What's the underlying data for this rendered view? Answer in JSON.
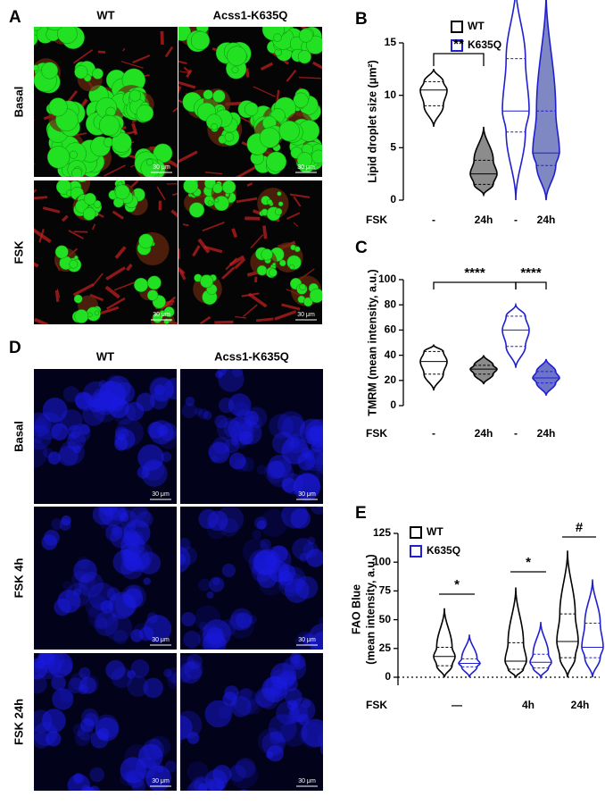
{
  "figure": {
    "images": [
      {
        "label": "A",
        "columns": [
          "WT",
          "Acss1-K635Q"
        ],
        "rows": [
          "Basal",
          "FSK"
        ],
        "scale_bar": "30 μm",
        "palette": "green-red"
      },
      {
        "label": "D",
        "columns": [
          "WT",
          "Acss1-K635Q"
        ],
        "rows": [
          "Basal",
          "FSK 4h",
          "FSK 24h"
        ],
        "scale_bar": "30 μm",
        "palette": "blue"
      }
    ]
  },
  "chart_data": [
    {
      "type": "violin",
      "label": "B",
      "ylabel": "Lipid droplet size (μm²)",
      "xlabel": "FSK",
      "categories": [
        "-",
        "24h",
        "-",
        "24h"
      ],
      "ylim": [
        0,
        15
      ],
      "yticks": [
        0,
        5,
        10,
        15
      ],
      "legend": "upper right",
      "series": [
        {
          "name": "WT",
          "color": "#000000",
          "fills": [
            "#ffffff",
            "#8c8c8c"
          ],
          "min": [
            7,
            0.5
          ],
          "q1": [
            9,
            1.5
          ],
          "median": [
            10.5,
            2.5
          ],
          "q3": [
            11.3,
            3.8
          ],
          "max": [
            12.5,
            7
          ]
        },
        {
          "name": "K635Q",
          "color": "#1f1fd0",
          "fills": [
            "#ffffff",
            "#8088c4"
          ],
          "min": [
            0,
            0
          ],
          "q1": [
            6.5,
            3.3
          ],
          "median": [
            8.5,
            4.5
          ],
          "q3": [
            13.5,
            8.5
          ],
          "max": [
            20.5,
            20
          ]
        }
      ],
      "annotations": [
        "**"
      ]
    },
    {
      "type": "violin",
      "label": "C",
      "ylabel": "TMRM (mean intensity, a.u.)",
      "xlabel": "FSK",
      "categories": [
        "-",
        "24h",
        "-",
        "24h"
      ],
      "ylim": [
        0,
        100
      ],
      "yticks": [
        0,
        20,
        40,
        60,
        80,
        100
      ],
      "series": [
        {
          "name": "WT",
          "color": "#000000",
          "fills": [
            "#ffffff",
            "#8c8c8c"
          ],
          "min": [
            12,
            17
          ],
          "q1": [
            25,
            25
          ],
          "median": [
            35,
            29
          ],
          "q3": [
            43,
            32
          ],
          "max": [
            48,
            40
          ]
        },
        {
          "name": "K635Q",
          "color": "#1f1fd0",
          "fills": [
            "#ffffff",
            "#6d74c9"
          ],
          "min": [
            30,
            8
          ],
          "q1": [
            47,
            18
          ],
          "median": [
            60,
            22
          ],
          "q3": [
            71,
            27
          ],
          "max": [
            80,
            37
          ]
        }
      ],
      "annotations": [
        "****",
        "****"
      ]
    },
    {
      "type": "violin",
      "label": "E",
      "ylabel": [
        "FAO Blue",
        "(mean intensity, a.u.)"
      ],
      "xlabel": "FSK",
      "categories": [
        "—",
        "4h",
        "24h"
      ],
      "ylim": [
        -7,
        125
      ],
      "yticks": [
        0,
        25,
        50,
        75,
        100,
        125
      ],
      "legend": "upper left",
      "zero_line": true,
      "series": [
        {
          "name": "WT",
          "color": "#000000",
          "fills": [
            "#ffffff",
            "#ffffff",
            "#ffffff"
          ],
          "min": [
            0,
            0,
            0
          ],
          "q1": [
            10,
            7,
            17
          ],
          "median": [
            18,
            14,
            31
          ],
          "q3": [
            26,
            30,
            55
          ],
          "max": [
            60,
            78,
            110
          ]
        },
        {
          "name": "K635Q",
          "color": "#1f1fd0",
          "fills": [
            "#ffffff",
            "#ffffff",
            "#ffffff"
          ],
          "min": [
            0,
            0,
            0
          ],
          "q1": [
            9,
            8,
            17
          ],
          "median": [
            12,
            13,
            26
          ],
          "q3": [
            16,
            20,
            47
          ],
          "max": [
            37,
            48,
            85
          ]
        }
      ],
      "annotations": [
        "*",
        "*",
        "#"
      ]
    }
  ]
}
